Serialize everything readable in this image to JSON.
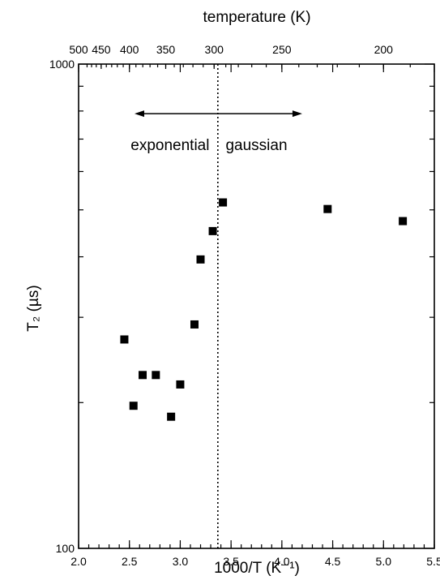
{
  "chart_data": {
    "type": "scatter",
    "title": "",
    "xlabel": "1000/T (K⁻¹)",
    "ylabel": "T₂ (µs)",
    "top_axis_label": "temperature (K)",
    "xlim": [
      2.0,
      5.5
    ],
    "ylim": [
      100,
      1000
    ],
    "yscale": "log",
    "x_ticks": [
      2.0,
      2.5,
      3.0,
      3.5,
      4.0,
      4.5,
      5.0,
      5.5
    ],
    "x_tick_labels": [
      "2.0",
      "2.5",
      "3.0",
      "3.5",
      "4.0",
      "4.5",
      "5.0",
      "5.5"
    ],
    "y_tick_labels": [
      "100",
      "1000"
    ],
    "top_ticks_K": [
      500,
      450,
      400,
      350,
      300,
      250,
      200
    ],
    "top_tick_labels": [
      "500",
      "450",
      "400",
      "350",
      "300",
      "250",
      "200"
    ],
    "grid": false,
    "vertical_line_x": 3.37,
    "annotations": [
      {
        "text": "exponential",
        "x": 2.9,
        "y": 680
      },
      {
        "text": "gaussian",
        "x": 3.75,
        "y": 680
      }
    ],
    "arrow": {
      "x_from": 3.37,
      "x_left": 2.55,
      "x_right": 4.2,
      "y": 790
    },
    "series": [
      {
        "x": [
          2.45,
          2.54,
          2.63,
          2.76,
          2.91,
          3.0,
          3.14,
          3.2,
          3.32,
          3.42,
          4.45,
          5.19
        ],
        "y": [
          270,
          197,
          228,
          228,
          187,
          218,
          290,
          395,
          452,
          518,
          502,
          474
        ]
      }
    ]
  }
}
